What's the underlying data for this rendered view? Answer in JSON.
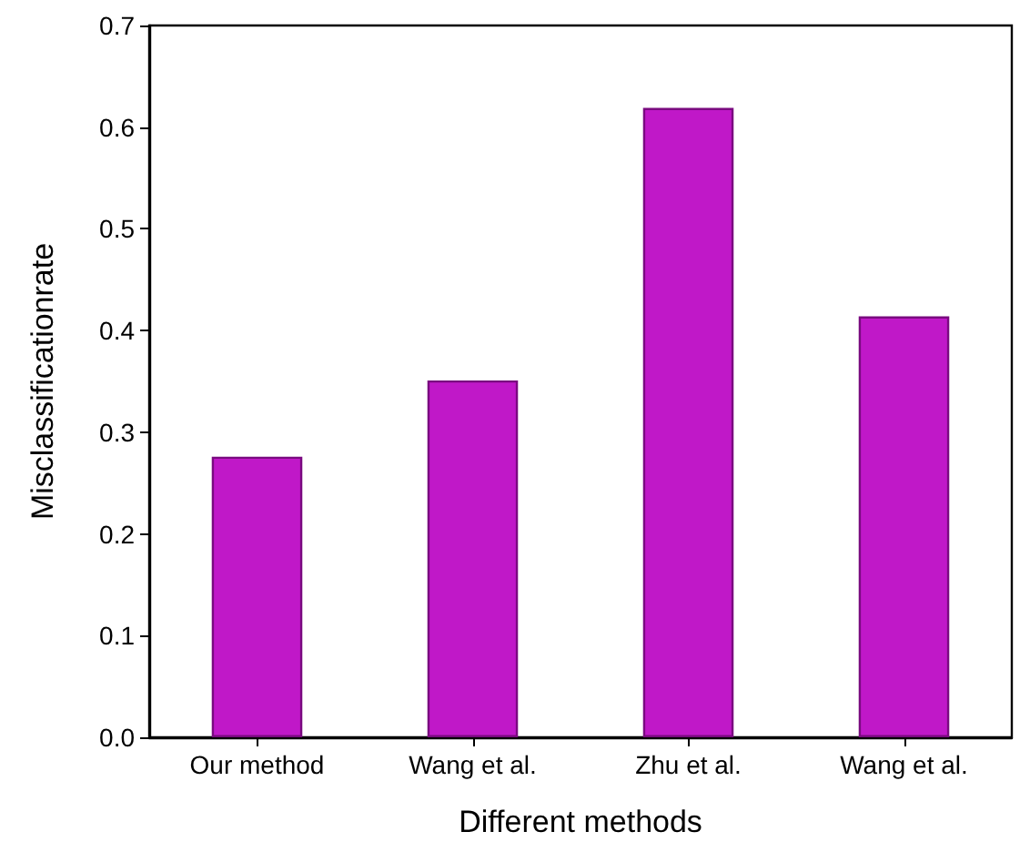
{
  "chart_data": {
    "type": "bar",
    "xlabel": "Different methods",
    "ylabel": "Misclassificationrate",
    "categories": [
      "Our method",
      "Wang et al.",
      "Zhu et al.",
      "Wang et al."
    ],
    "values": [
      0.276,
      0.351,
      0.619,
      0.414
    ],
    "color": "#c018c8",
    "ylim": [
      0,
      0.7
    ],
    "yticks": [
      {
        "value": 0,
        "label": "0.0"
      },
      0.1,
      0.2,
      0.3,
      0.4,
      0.5,
      0.6,
      0.7
    ],
    "grid": false
  }
}
